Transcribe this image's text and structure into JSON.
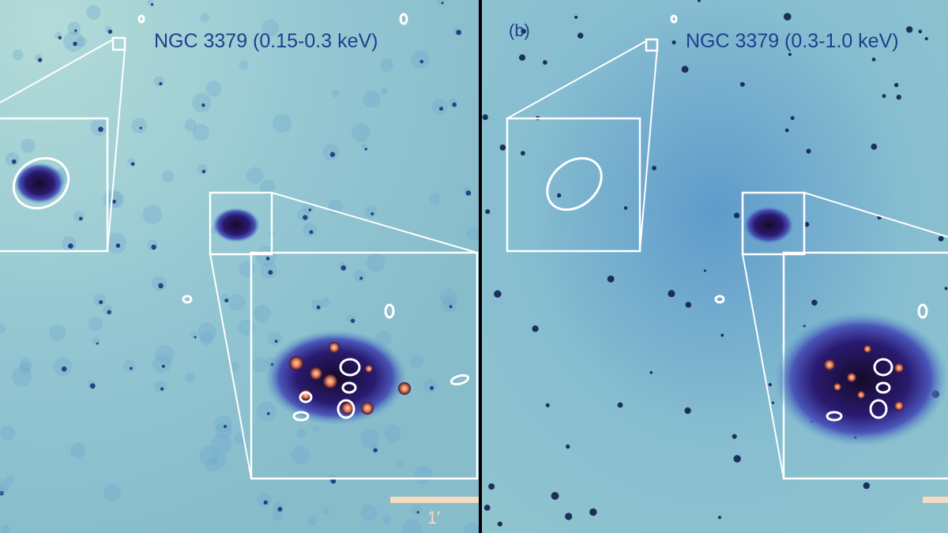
{
  "panels": [
    {
      "title": "NGC 3379 (0.15-0.3 keV)",
      "scale_label": "1′"
    },
    {
      "label": "(b)",
      "title": "NGC 3379 (0.3-1.0 keV)"
    }
  ]
}
